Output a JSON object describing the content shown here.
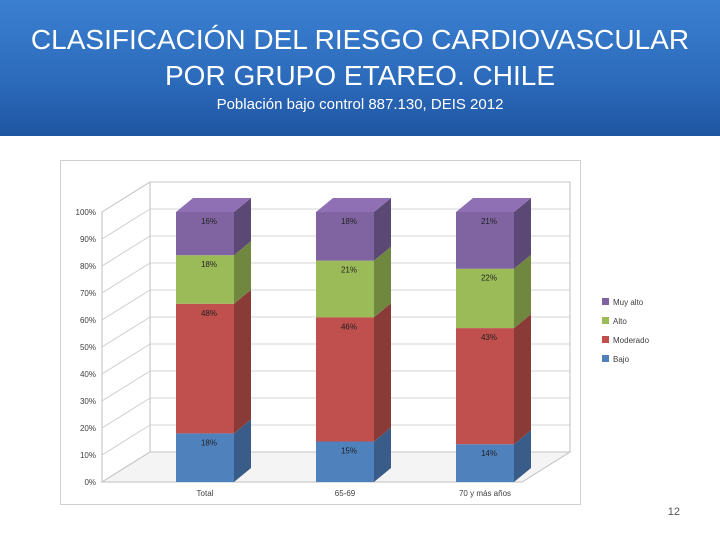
{
  "header": {
    "title": "CLASIFICACIÓN DEL RIESGO CARDIOVASCULAR POR GRUPO ETAREO. CHILE",
    "subtitle": "Población bajo control 887.130, DEIS 2012"
  },
  "slide_number": "12",
  "chart_data": {
    "type": "bar",
    "stacked": true,
    "view": "3d",
    "categories": [
      "Total",
      "65-69",
      "70 y más años"
    ],
    "series": [
      {
        "name": "Bajo",
        "values": [
          18,
          15,
          14
        ],
        "labels": [
          "18%",
          "15%",
          "14%"
        ],
        "color": "#4f81bd"
      },
      {
        "name": "Moderado",
        "values": [
          48,
          46,
          43
        ],
        "labels": [
          "48%",
          "46%",
          "43%"
        ],
        "color": "#c0504d"
      },
      {
        "name": "Alto",
        "values": [
          18,
          21,
          22
        ],
        "labels": [
          "18%",
          "21%",
          "22%"
        ],
        "color": "#9bbb59"
      },
      {
        "name": "Muy alto",
        "values": [
          16,
          18,
          21
        ],
        "labels": [
          "16%",
          "18%",
          "21%"
        ],
        "color": "#8064a2"
      }
    ],
    "y_ticks": [
      "0%",
      "10%",
      "20%",
      "30%",
      "40%",
      "50%",
      "60%",
      "70%",
      "80%",
      "90%",
      "100%"
    ],
    "ylim": [
      0,
      100
    ],
    "legend": [
      "Muy alto",
      "Alto",
      "Moderado",
      "Bajo"
    ],
    "legend_position": "right",
    "grid": true
  }
}
